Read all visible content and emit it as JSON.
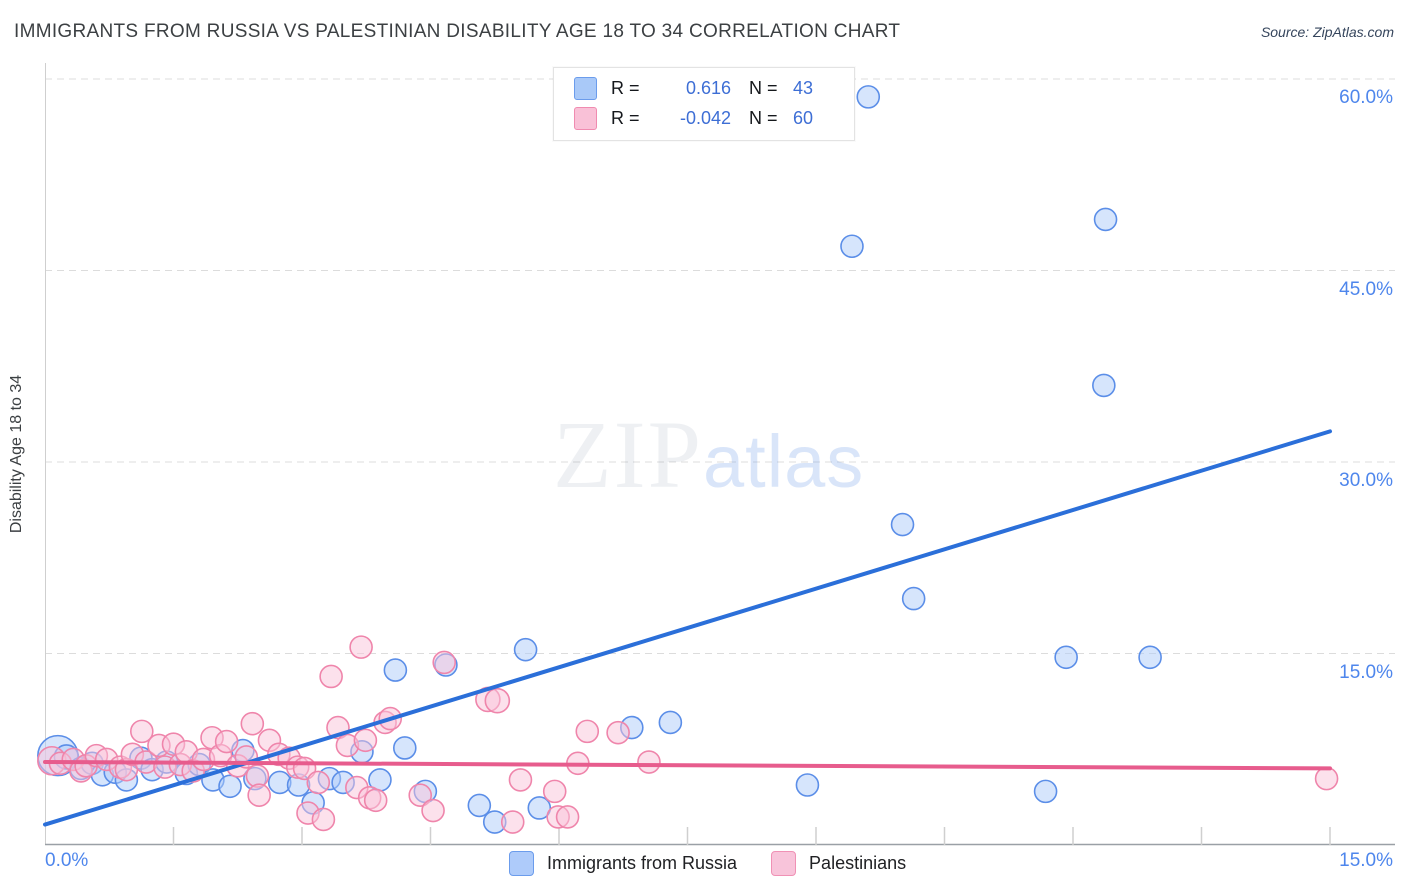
{
  "header": {
    "title": "IMMIGRANTS FROM RUSSIA VS PALESTINIAN DISABILITY AGE 18 TO 34 CORRELATION CHART",
    "source": "Source: ZipAtlas.com"
  },
  "watermark": {
    "part1": "ZIP",
    "part2": "atlas"
  },
  "legend_box": {
    "rows": [
      {
        "series": "Immigrants from Russia",
        "r_label": "R =",
        "r_value": "0.616",
        "n_label": "N =",
        "n_value": "43"
      },
      {
        "series": "Palestinians",
        "r_label": "R =",
        "r_value": "-0.042",
        "n_label": "N =",
        "n_value": "60"
      }
    ]
  },
  "axes": {
    "y_title": "Disability Age 18 to 34",
    "x_min_label": "0.0%",
    "x_max_label": "15.0%",
    "y_tick_labels": [
      "15.0%",
      "30.0%",
      "45.0%",
      "60.0%"
    ],
    "y_tick_values": [
      15,
      30,
      45,
      60
    ],
    "x_tick_step_pct": 1.5,
    "grid": "horizontal-dashed"
  },
  "bottom_legend": [
    {
      "label": "Immigrants from Russia",
      "color": "#aecbfa"
    },
    {
      "label": "Palestinians",
      "color": "#f8c4da"
    }
  ],
  "chart_data": {
    "type": "scatter",
    "title": "IMMIGRANTS FROM RUSSIA VS PALESTINIAN DISABILITY AGE 18 TO 34 CORRELATION CHART",
    "xlabel": "",
    "ylabel": "Disability Age 18 to 34",
    "x_unit": "%",
    "y_unit": "%",
    "xlim": [
      0,
      15
    ],
    "ylim": [
      0,
      61.2
    ],
    "legend_position": "bottom",
    "series": [
      {
        "name": "Immigrants from Russia",
        "R": 0.616,
        "N": 43,
        "fill": "#aecbfa",
        "stroke": "#5b8ee8",
        "trend": {
          "x1": 0,
          "y1": 1.6,
          "x2": 15,
          "y2": 32.4,
          "color": "#2b6fd9"
        },
        "points": [
          [
            0.15,
            7.0,
            20
          ],
          [
            0.25,
            6.9,
            12
          ],
          [
            0.42,
            6.0,
            11
          ],
          [
            0.55,
            6.4,
            11
          ],
          [
            0.67,
            5.5,
            11
          ],
          [
            0.82,
            5.7,
            11
          ],
          [
            0.95,
            5.1,
            11
          ],
          [
            1.12,
            6.8,
            11
          ],
          [
            1.25,
            5.9,
            11
          ],
          [
            1.42,
            6.5,
            11
          ],
          [
            1.65,
            5.6,
            11
          ],
          [
            1.8,
            6.3,
            11
          ],
          [
            1.96,
            5.1,
            11
          ],
          [
            2.16,
            4.6,
            11
          ],
          [
            2.31,
            7.4,
            11
          ],
          [
            2.45,
            5.2,
            11
          ],
          [
            2.74,
            4.9,
            11
          ],
          [
            2.96,
            4.7,
            11
          ],
          [
            3.13,
            3.3,
            11
          ],
          [
            3.32,
            5.2,
            11
          ],
          [
            3.48,
            4.9,
            11
          ],
          [
            3.7,
            7.3,
            11
          ],
          [
            3.91,
            5.1,
            11
          ],
          [
            4.09,
            13.7,
            11
          ],
          [
            4.2,
            7.6,
            11
          ],
          [
            4.44,
            4.2,
            11
          ],
          [
            4.68,
            14.1,
            11
          ],
          [
            5.07,
            3.1,
            11
          ],
          [
            5.25,
            1.8,
            11
          ],
          [
            5.61,
            15.3,
            11
          ],
          [
            5.77,
            2.9,
            11
          ],
          [
            6.85,
            9.2,
            11
          ],
          [
            7.3,
            9.6,
            11
          ],
          [
            8.9,
            4.7,
            11
          ],
          [
            9.42,
            46.9,
            11
          ],
          [
            9.61,
            58.6,
            11
          ],
          [
            10.01,
            25.1,
            11
          ],
          [
            10.14,
            19.3,
            11
          ],
          [
            11.68,
            4.2,
            11
          ],
          [
            11.92,
            14.7,
            11
          ],
          [
            12.36,
            36.0,
            11
          ],
          [
            12.38,
            49.0,
            11
          ],
          [
            12.9,
            14.7,
            11
          ]
        ]
      },
      {
        "name": "Palestinians",
        "R": -0.042,
        "N": 60,
        "fill": "#f9c4da",
        "stroke": "#ef85ab",
        "trend": {
          "x1": 0,
          "y1": 6.5,
          "x2": 15,
          "y2": 6.0,
          "color": "#e75c8d"
        },
        "points": [
          [
            0.08,
            6.6,
            14
          ],
          [
            0.18,
            6.4,
            11
          ],
          [
            0.33,
            6.7,
            11
          ],
          [
            0.42,
            5.8,
            11
          ],
          [
            0.48,
            6.2,
            11
          ],
          [
            0.6,
            7.0,
            11
          ],
          [
            0.72,
            6.7,
            11
          ],
          [
            0.88,
            6.1,
            11
          ],
          [
            0.95,
            5.9,
            11
          ],
          [
            1.02,
            7.1,
            11
          ],
          [
            1.13,
            8.9,
            11
          ],
          [
            1.18,
            6.5,
            11
          ],
          [
            1.33,
            7.8,
            11
          ],
          [
            1.4,
            6.1,
            11
          ],
          [
            1.5,
            7.9,
            11
          ],
          [
            1.58,
            6.3,
            11
          ],
          [
            1.65,
            7.3,
            11
          ],
          [
            1.73,
            5.8,
            11
          ],
          [
            1.85,
            6.7,
            11
          ],
          [
            1.95,
            8.4,
            11
          ],
          [
            2.05,
            7.0,
            11
          ],
          [
            2.12,
            8.1,
            11
          ],
          [
            2.25,
            6.2,
            11
          ],
          [
            2.35,
            6.9,
            11
          ],
          [
            2.42,
            9.5,
            11
          ],
          [
            2.48,
            5.4,
            11
          ],
          [
            2.5,
            3.9,
            11
          ],
          [
            2.62,
            8.2,
            11
          ],
          [
            2.73,
            7.1,
            11
          ],
          [
            2.85,
            6.8,
            11
          ],
          [
            2.95,
            6.1,
            11
          ],
          [
            3.03,
            6.0,
            11
          ],
          [
            3.07,
            2.5,
            11
          ],
          [
            3.19,
            4.9,
            11
          ],
          [
            3.25,
            2.0,
            11
          ],
          [
            3.34,
            13.2,
            11
          ],
          [
            3.42,
            9.2,
            11
          ],
          [
            3.53,
            7.8,
            11
          ],
          [
            3.64,
            4.5,
            11
          ],
          [
            3.69,
            15.5,
            11
          ],
          [
            3.74,
            8.2,
            11
          ],
          [
            3.79,
            3.7,
            11
          ],
          [
            3.86,
            3.5,
            11
          ],
          [
            3.97,
            9.6,
            11
          ],
          [
            4.03,
            9.9,
            11
          ],
          [
            4.38,
            3.9,
            11
          ],
          [
            4.53,
            2.7,
            11
          ],
          [
            4.66,
            14.3,
            11
          ],
          [
            5.17,
            11.4,
            12
          ],
          [
            5.28,
            11.3,
            12
          ],
          [
            5.46,
            1.8,
            11
          ],
          [
            5.55,
            5.1,
            11
          ],
          [
            5.95,
            4.2,
            11
          ],
          [
            5.99,
            2.2,
            11
          ],
          [
            6.1,
            2.2,
            11
          ],
          [
            6.22,
            6.4,
            11
          ],
          [
            6.33,
            8.9,
            11
          ],
          [
            6.69,
            8.8,
            11
          ],
          [
            7.05,
            6.5,
            11
          ],
          [
            14.96,
            5.2,
            11
          ]
        ]
      }
    ]
  }
}
